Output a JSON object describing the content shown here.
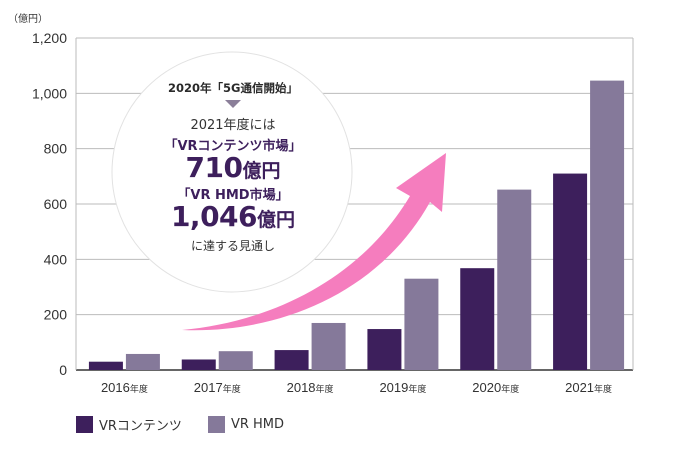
{
  "chart_data": {
    "type": "bar",
    "unit_label": "（億円）",
    "categories": [
      "2016",
      "2017",
      "2018",
      "2019",
      "2020",
      "2021"
    ],
    "category_suffix": "年度",
    "series": [
      {
        "name": "VRコンテンツ",
        "color": "#3d1f5c",
        "values": [
          30,
          38,
          72,
          148,
          368,
          710
        ]
      },
      {
        "name": "VR HMD",
        "color": "#85799a",
        "values": [
          58,
          68,
          170,
          330,
          652,
          1046
        ]
      }
    ],
    "ylim": [
      0,
      1200
    ],
    "yticks": [
      {
        "value": 0,
        "label": "0"
      },
      {
        "value": 200,
        "label": "200"
      },
      {
        "value": 400,
        "label": "400"
      },
      {
        "value": 600,
        "label": "600"
      },
      {
        "value": 800,
        "label": "800"
      },
      {
        "value": 1000,
        "label": "1,000"
      },
      {
        "value": 1200,
        "label": "1,200"
      }
    ],
    "grid": true,
    "legend_position": "bottom-left",
    "trend_arrow_color": "#f57dbe"
  },
  "annotation": {
    "heading": "2020年「5G通信開始」",
    "line1": "2021年度には",
    "market1": "「VRコンテンツ市場」",
    "value1_num": "710",
    "value1_unit": "億円",
    "market2": "「VR HMD市場」",
    "value2_num": "1,046",
    "value2_unit": "億円",
    "footer": "に達する見通し"
  }
}
